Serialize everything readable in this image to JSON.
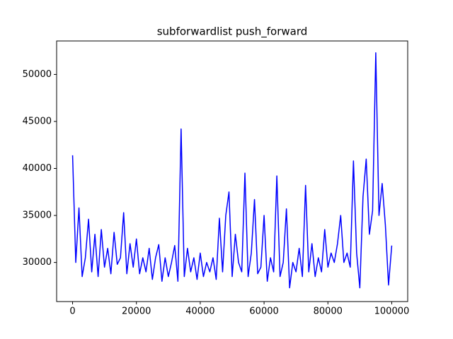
{
  "chart_data": {
    "type": "line",
    "title": "subforwardlist push_forward",
    "x": [
      0,
      1000,
      2000,
      3000,
      4000,
      5000,
      6000,
      7000,
      8000,
      9000,
      10000,
      11000,
      12000,
      13000,
      14000,
      15000,
      16000,
      17000,
      18000,
      19000,
      20000,
      21000,
      22000,
      23000,
      24000,
      25000,
      26000,
      27000,
      28000,
      29000,
      30000,
      31000,
      32000,
      33000,
      34000,
      35000,
      36000,
      37000,
      38000,
      39000,
      40000,
      41000,
      42000,
      43000,
      44000,
      45000,
      46000,
      47000,
      48000,
      49000,
      50000,
      51000,
      52000,
      53000,
      54000,
      55000,
      56000,
      57000,
      58000,
      59000,
      60000,
      61000,
      62000,
      63000,
      64000,
      65000,
      66000,
      67000,
      68000,
      69000,
      70000,
      71000,
      72000,
      73000,
      74000,
      75000,
      76000,
      77000,
      78000,
      79000,
      80000,
      81000,
      82000,
      83000,
      84000,
      85000,
      86000,
      87000,
      88000,
      89000,
      90000,
      91000,
      92000,
      93000,
      94000,
      95000,
      96000,
      97000,
      98000,
      99000,
      100000
    ],
    "series": [
      {
        "color": "#0000ff",
        "values": [
          41400,
          30000,
          35800,
          28500,
          30500,
          34600,
          29000,
          33000,
          28500,
          33500,
          29500,
          31500,
          28800,
          33200,
          29800,
          30500,
          35300,
          28800,
          32000,
          29500,
          32500,
          28800,
          30500,
          29000,
          31500,
          28200,
          30500,
          31900,
          28000,
          30500,
          28500,
          30000,
          31800,
          28000,
          44200,
          28500,
          31500,
          29000,
          30500,
          28200,
          31000,
          28500,
          30000,
          29000,
          30500,
          28200,
          34700,
          29000,
          35000,
          37500,
          28500,
          33000,
          30000,
          29000,
          39500,
          28500,
          31000,
          36700,
          28800,
          29500,
          35000,
          28000,
          30500,
          29000,
          39200,
          28500,
          30000,
          35700,
          27300,
          30000,
          29000,
          31500,
          28500,
          38200,
          29000,
          32000,
          28500,
          30500,
          29000,
          33500,
          29500,
          31000,
          30000,
          32000,
          35000,
          30000,
          31000,
          29500,
          40800,
          31000,
          27300,
          37000,
          41000,
          33000,
          35500,
          52300,
          35000,
          38400,
          34000,
          27600,
          31800
        ]
      }
    ],
    "xlim": [
      -5000,
      105000
    ],
    "ylim": [
      25840,
      53560
    ],
    "xticks": [
      0,
      20000,
      40000,
      60000,
      80000,
      100000
    ],
    "yticks": [
      30000,
      35000,
      40000,
      45000,
      50000
    ]
  }
}
